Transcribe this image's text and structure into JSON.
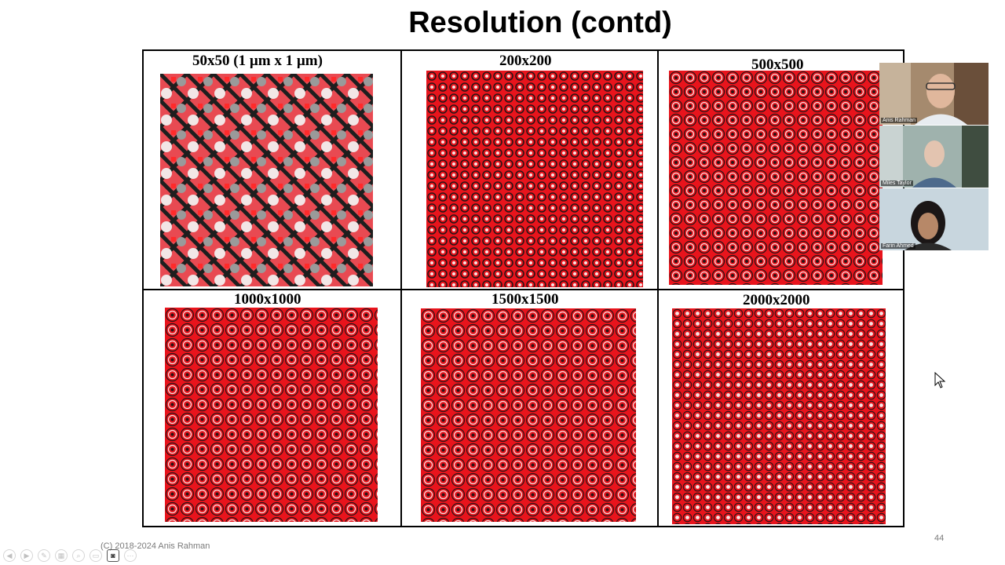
{
  "slide": {
    "title": "Resolution (contd)",
    "cells": [
      {
        "label": "50x50    (1 µm x 1 µm)"
      },
      {
        "label": "200x200"
      },
      {
        "label": "500x500"
      },
      {
        "label": "1000x1000"
      },
      {
        "label": "1500x1500"
      },
      {
        "label": "2000x2000"
      }
    ],
    "footer": "(C) 2018-2024 Anis Rahman",
    "page_number": "44"
  },
  "participants": [
    {
      "name": "Anis Rahman"
    },
    {
      "name": "Miles Taylor"
    },
    {
      "name": "Farin Ahmed"
    }
  ],
  "colors": {
    "pattern_red": "#e8141c",
    "pattern_dark": "#2a1416",
    "pattern_light": "#f4e4e4"
  }
}
